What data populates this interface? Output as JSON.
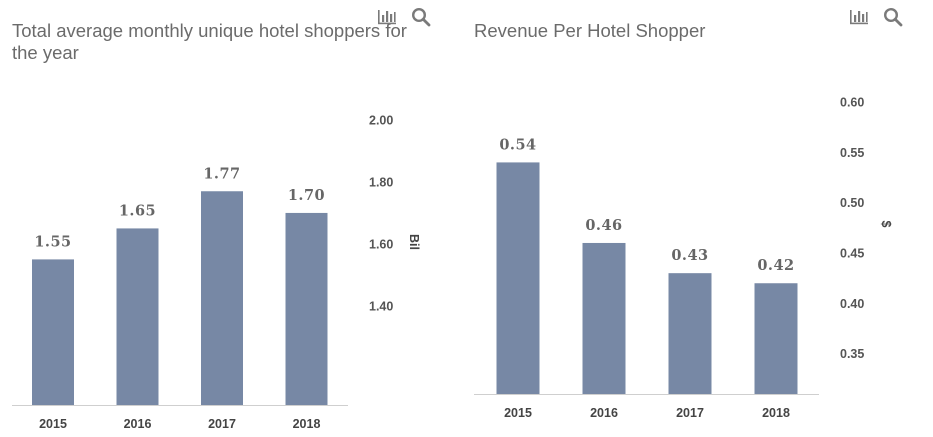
{
  "charts": [
    {
      "title": "Total average monthly unique hotel shoppers for the year",
      "chart_data": {
        "type": "bar",
        "categories": [
          "2015",
          "2016",
          "2017",
          "2018"
        ],
        "values": [
          1.55,
          1.65,
          1.77,
          1.7
        ],
        "value_labels": [
          "1.55",
          "1.65",
          "1.77",
          "1.70"
        ],
        "title": "Total average monthly unique hotel shoppers for the year",
        "ylabel": "Bil",
        "yticks": [
          "1.40",
          "1.60",
          "1.80",
          "2.00"
        ],
        "ytick_values": [
          1.4,
          1.6,
          1.8,
          2.0
        ],
        "ylim": [
          1.08,
          2.0
        ],
        "y_axis_position": "right",
        "grid": false,
        "bar_color": "#7788a5"
      }
    },
    {
      "title": "Revenue Per Hotel Shopper",
      "chart_data": {
        "type": "bar",
        "categories": [
          "2015",
          "2016",
          "2017",
          "2018"
        ],
        "values": [
          0.54,
          0.46,
          0.43,
          0.42
        ],
        "value_labels": [
          "0.54",
          "0.46",
          "0.43",
          "0.42"
        ],
        "title": "Revenue Per Hotel Shopper",
        "ylabel": "$",
        "yticks": [
          "0.35",
          "0.40",
          "0.45",
          "0.50",
          "0.55",
          "0.60"
        ],
        "ytick_values": [
          0.35,
          0.4,
          0.45,
          0.5,
          0.55,
          0.6
        ],
        "ylim": [
          0.31,
          0.6
        ],
        "y_axis_position": "right",
        "grid": false,
        "bar_color": "#7788a5"
      }
    }
  ],
  "toolbar": {
    "icons": [
      "bar-chart-icon",
      "search-icon"
    ]
  }
}
